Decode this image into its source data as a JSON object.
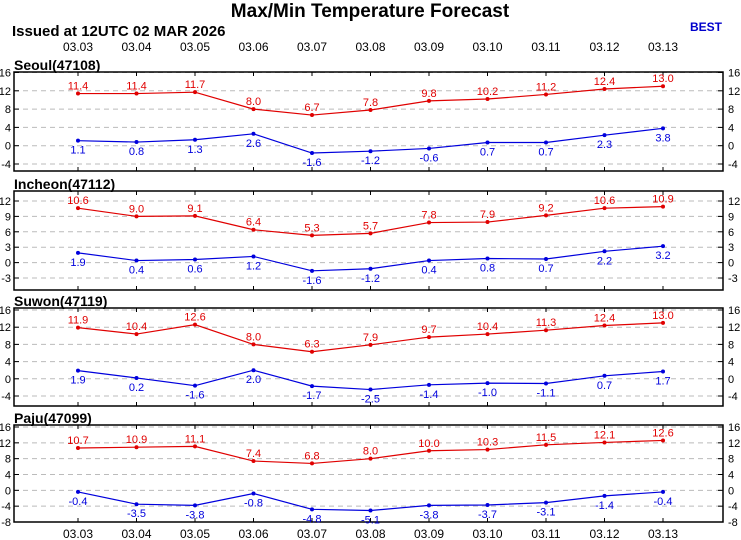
{
  "header": {
    "title": "Max/Min Temperature Forecast",
    "issued": "Issued at 12UTC 02 MAR 2026",
    "model": "BEST"
  },
  "colors": {
    "max": "#e00000",
    "min": "#0000dd",
    "grid": "#bbbbbb"
  },
  "chart_data": [
    {
      "type": "line",
      "title": "Seoul(47108)",
      "categories": [
        "03.03",
        "03.04",
        "03.05",
        "03.06",
        "03.07",
        "03.08",
        "03.09",
        "03.10",
        "03.11",
        "03.12",
        "03.13"
      ],
      "yticks": [
        -4,
        0,
        4,
        8,
        12,
        16
      ],
      "ylim": [
        -5,
        16
      ],
      "grid": true,
      "series": [
        {
          "values": [
            11.4,
            11.4,
            11.7,
            8.0,
            6.7,
            7.8,
            9.8,
            10.2,
            11.2,
            12.4,
            13.0
          ],
          "labels": [
            "11.4",
            "11.4",
            "11.7",
            "8.0",
            "6.7",
            "7.8",
            "9.8",
            "10.2",
            "11.2",
            "12.4",
            "13.0"
          ]
        },
        {
          "values": [
            1.1,
            0.8,
            1.3,
            2.6,
            -1.6,
            -1.2,
            -0.6,
            0.7,
            0.7,
            2.3,
            3.8
          ],
          "labels": [
            "1.1",
            "0.8",
            "1.3",
            "2.6",
            "-1.6",
            "-1.2",
            "-0.6",
            "0.7",
            "0.7",
            "2.3",
            "3.8"
          ]
        }
      ]
    },
    {
      "type": "line",
      "title": "Incheon(47112)",
      "categories": [
        "03.03",
        "03.04",
        "03.05",
        "03.06",
        "03.07",
        "03.08",
        "03.09",
        "03.10",
        "03.11",
        "03.12",
        "03.13"
      ],
      "yticks": [
        -3,
        0,
        3,
        6,
        9,
        12
      ],
      "ylim": [
        -4,
        14
      ],
      "grid": true,
      "series": [
        {
          "values": [
            10.6,
            9.0,
            9.1,
            6.4,
            5.3,
            5.7,
            7.8,
            7.9,
            9.2,
            10.6,
            10.9
          ],
          "labels": [
            "10.6",
            "9.0",
            "9.1",
            "6.4",
            "5.3",
            "5.7",
            "7.8",
            "7.9",
            "9.2",
            "10.6",
            "10.9"
          ]
        },
        {
          "values": [
            1.9,
            0.4,
            0.6,
            1.2,
            -1.6,
            -1.2,
            0.4,
            0.8,
            0.7,
            2.2,
            3.2
          ],
          "labels": [
            "1.9",
            "0.4",
            "0.6",
            "1.2",
            "-1.6",
            "-1.2",
            "0.4",
            "0.8",
            "0.7",
            "2.2",
            "3.2"
          ]
        }
      ]
    },
    {
      "type": "line",
      "title": "Suwon(47119)",
      "categories": [
        "03.03",
        "03.04",
        "03.05",
        "03.06",
        "03.07",
        "03.08",
        "03.09",
        "03.10",
        "03.11",
        "03.12",
        "03.13"
      ],
      "yticks": [
        -4,
        0,
        4,
        8,
        12,
        16
      ],
      "ylim": [
        -5,
        16
      ],
      "grid": true,
      "series": [
        {
          "values": [
            11.9,
            10.4,
            12.6,
            8.0,
            6.3,
            7.9,
            9.7,
            10.4,
            11.3,
            12.4,
            13.0
          ],
          "labels": [
            "11.9",
            "10.4",
            "12.6",
            "8.0",
            "6.3",
            "7.9",
            "9.7",
            "10.4",
            "11.3",
            "12.4",
            "13.0"
          ]
        },
        {
          "values": [
            1.9,
            0.2,
            -1.6,
            2.0,
            -1.7,
            -2.5,
            -1.4,
            -1.0,
            -1.1,
            0.7,
            1.7
          ],
          "labels": [
            "1.9",
            "0.2",
            "-1.6",
            "2.0",
            "-1.7",
            "-2.5",
            "-1.4",
            "-1.0",
            "-1.1",
            "0.7",
            "1.7"
          ]
        }
      ]
    },
    {
      "type": "line",
      "title": "Paju(47099)",
      "categories": [
        "03.03",
        "03.04",
        "03.05",
        "03.06",
        "03.07",
        "03.08",
        "03.09",
        "03.10",
        "03.11",
        "03.12",
        "03.13"
      ],
      "yticks": [
        -8,
        -4,
        0,
        4,
        8,
        12,
        16
      ],
      "ylim": [
        -8,
        16
      ],
      "grid": true,
      "series": [
        {
          "values": [
            10.7,
            10.9,
            11.1,
            7.4,
            6.8,
            8.0,
            10.0,
            10.3,
            11.5,
            12.1,
            12.6
          ],
          "labels": [
            "10.7",
            "10.9",
            "11.1",
            "7.4",
            "6.8",
            "8.0",
            "10.0",
            "10.3",
            "11.5",
            "12.1",
            "12.6"
          ]
        },
        {
          "values": [
            -0.4,
            -3.5,
            -3.8,
            -0.8,
            -4.8,
            -5.1,
            -3.8,
            -3.7,
            -3.1,
            -1.4,
            -0.4
          ],
          "labels": [
            "-0.4",
            "-3.5",
            "-3.8",
            "-0.8",
            "-4.8",
            "-5.1",
            "-3.8",
            "-3.7",
            "-3.1",
            "-1.4",
            "-0.4"
          ]
        }
      ]
    }
  ]
}
